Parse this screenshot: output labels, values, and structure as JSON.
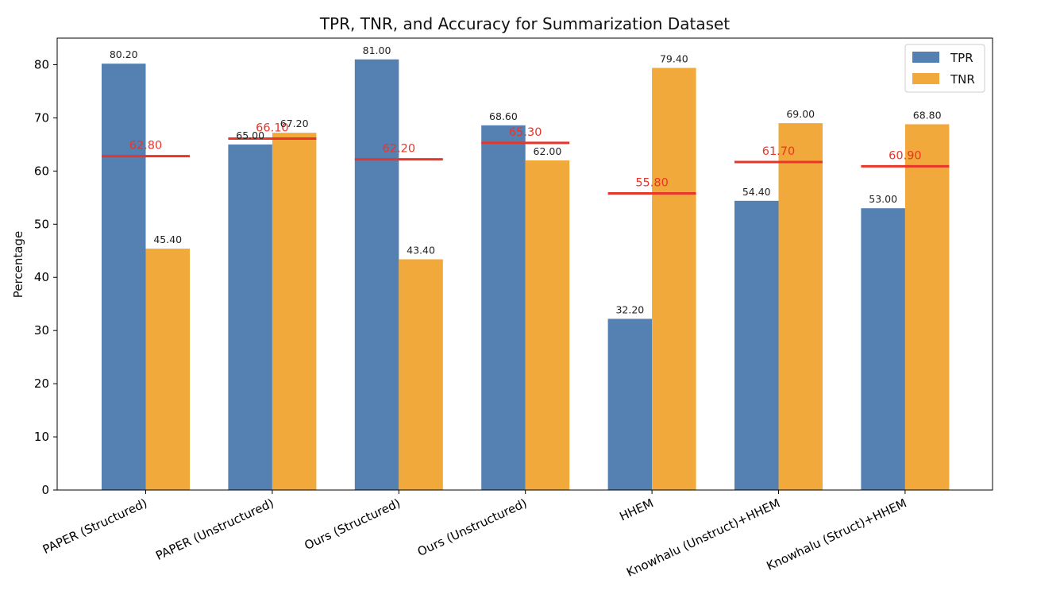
{
  "chart_data": {
    "type": "bar",
    "title": "TPR, TNR, and Accuracy for Summarization Dataset",
    "xlabel": "",
    "ylabel": "Percentage",
    "ylim": [
      0,
      85
    ],
    "yticks": [
      0,
      10,
      20,
      30,
      40,
      50,
      60,
      70,
      80
    ],
    "grid": false,
    "legend_position": "top-right",
    "categories": [
      "PAPER (Structured)",
      "PAPER (Unstructured)",
      "Ours (Structured)",
      "Ours (Unstructured)",
      "HHEM",
      "Knowhalu (Unstruct)+HHEM",
      "Knowhalu (Struct)+HHEM"
    ],
    "series": [
      {
        "name": "TPR",
        "color": "#5480b2",
        "values": [
          80.2,
          65.0,
          81.0,
          68.6,
          32.2,
          54.4,
          53.0
        ],
        "labels": [
          "80.20",
          "65.00",
          "81.00",
          "68.60",
          "32.20",
          "54.40",
          "53.00"
        ]
      },
      {
        "name": "TNR",
        "color": "#f2a93b",
        "values": [
          45.4,
          67.2,
          43.4,
          62.0,
          79.4,
          69.0,
          68.8
        ],
        "labels": [
          "45.40",
          "67.20",
          "43.40",
          "62.00",
          "79.40",
          "69.00",
          "68.80"
        ]
      }
    ],
    "accuracy": {
      "color": "#e8352a",
      "values": [
        62.8,
        66.1,
        62.2,
        65.3,
        55.8,
        61.7,
        60.9
      ],
      "labels": [
        "62.80",
        "66.10",
        "62.20",
        "65.30",
        "55.80",
        "61.70",
        "60.90"
      ]
    },
    "ytick_labels": [
      "0",
      "10",
      "20",
      "30",
      "40",
      "50",
      "60",
      "70",
      "80"
    ]
  }
}
